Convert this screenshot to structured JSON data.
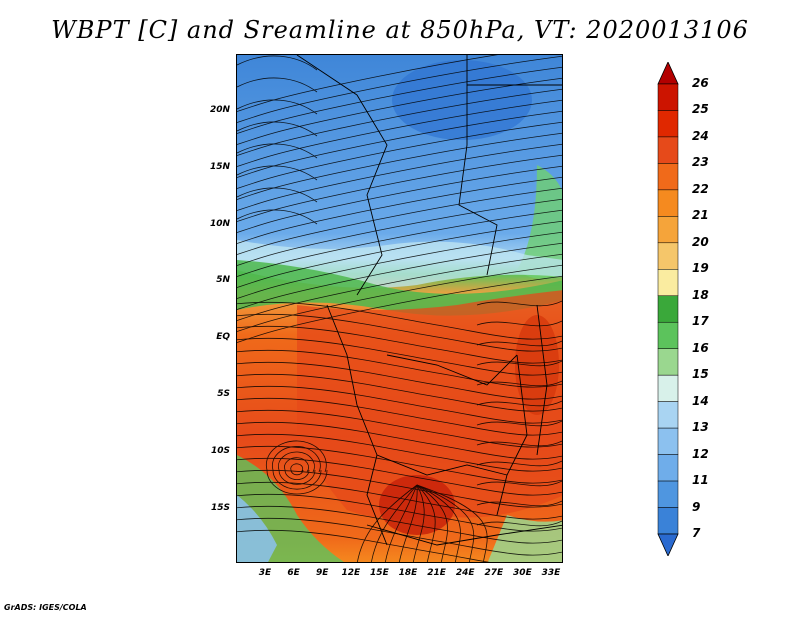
{
  "title": "WBPT [C] and Sreamline at 850hPa, VT: 2020013106",
  "credit": "GrADS: IGES/COLA",
  "lat_labels": [
    "20N",
    "15N",
    "10N",
    "5N",
    "EQ",
    "5S",
    "10S",
    "15S"
  ],
  "lon_labels": [
    "3E",
    "6E",
    "9E",
    "12E",
    "15E",
    "18E",
    "21E",
    "24E",
    "27E",
    "30E",
    "33E"
  ],
  "colorbar": {
    "labels": [
      "26",
      "25",
      "24",
      "23",
      "22",
      "21",
      "20",
      "19",
      "18",
      "17",
      "16",
      "15",
      "14",
      "13",
      "12",
      "11",
      "9",
      "7"
    ],
    "colors": [
      "#b30000",
      "#cc1400",
      "#e02800",
      "#e64a1a",
      "#f06a1a",
      "#f58a1f",
      "#f5a43a",
      "#f5c66a",
      "#faeca0",
      "#3aa83a",
      "#5cc35c",
      "#9ad78f",
      "#d8f1ea",
      "#a9d4f2",
      "#8cc1ef",
      "#6fadea",
      "#4f96e0",
      "#3a82d8",
      "#2a6ad0"
    ]
  }
}
